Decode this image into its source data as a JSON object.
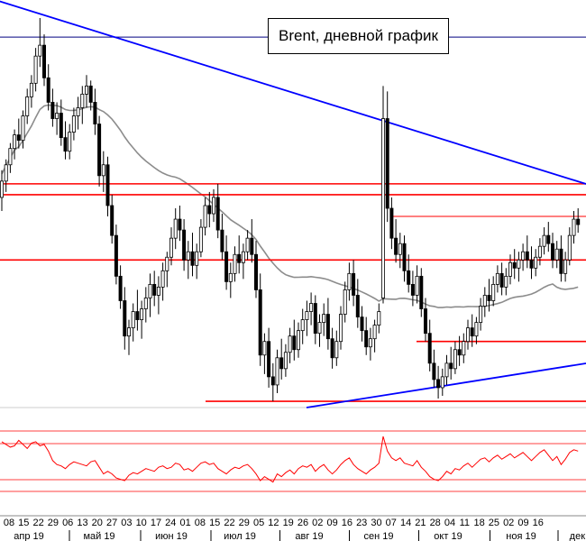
{
  "chart_data": [
    {
      "type": "candlestick",
      "title": "Brent, дневной график",
      "price_range_shown": [
        57.5,
        71.5
      ],
      "series": [
        {
          "name": "",
          "kind": "ohlc-daily",
          "values": [
            [
              64.9,
              65.9,
              64.4,
              65.5
            ],
            [
              65.5,
              66.3,
              65.1,
              66.1
            ],
            [
              66.1,
              66.9,
              65.8,
              66.7
            ],
            [
              66.7,
              67.4,
              66.3,
              67.2
            ],
            [
              67.2,
              67.8,
              66.7,
              67.0
            ],
            [
              67.0,
              68.1,
              66.7,
              67.9
            ],
            [
              67.9,
              68.9,
              67.6,
              68.6
            ],
            [
              68.6,
              69.4,
              68.2,
              69.1
            ],
            [
              69.1,
              70.4,
              68.8,
              70.1
            ],
            [
              70.1,
              71.5,
              69.7,
              70.5
            ],
            [
              70.5,
              70.9,
              69.0,
              69.3
            ],
            [
              69.3,
              69.8,
              68.1,
              68.4
            ],
            [
              68.4,
              68.9,
              67.5,
              67.8
            ],
            [
              67.8,
              68.4,
              67.2,
              68.0
            ],
            [
              68.0,
              68.5,
              66.8,
              67.1
            ],
            [
              67.1,
              67.7,
              66.3,
              66.6
            ],
            [
              66.6,
              67.6,
              66.3,
              67.3
            ],
            [
              67.3,
              68.2,
              67.0,
              67.9
            ],
            [
              67.9,
              68.6,
              67.4,
              68.2
            ],
            [
              68.2,
              69.0,
              67.6,
              68.7
            ],
            [
              68.7,
              69.4,
              68.2,
              69.0
            ],
            [
              69.0,
              69.2,
              68.1,
              68.4
            ],
            [
              68.4,
              68.9,
              67.2,
              67.6
            ],
            [
              67.6,
              67.9,
              65.3,
              65.7
            ],
            [
              65.7,
              66.6,
              65.1,
              66.1
            ],
            [
              66.1,
              66.4,
              64.2,
              64.6
            ],
            [
              64.6,
              65.0,
              63.2,
              63.5
            ],
            [
              63.5,
              63.9,
              61.7,
              62.0
            ],
            [
              62.0,
              62.4,
              60.8,
              61.1
            ],
            [
              61.1,
              61.6,
              59.3,
              59.8
            ],
            [
              59.8,
              60.4,
              59.1,
              60.1
            ],
            [
              60.1,
              61.0,
              59.6,
              60.7
            ],
            [
              60.7,
              61.5,
              60.0,
              60.4
            ],
            [
              60.4,
              61.1,
              59.7,
              60.8
            ],
            [
              60.8,
              61.6,
              60.3,
              61.2
            ],
            [
              61.2,
              62.1,
              60.5,
              61.7
            ],
            [
              61.7,
              62.2,
              60.9,
              61.3
            ],
            [
              61.3,
              62.0,
              60.6,
              61.6
            ],
            [
              61.6,
              62.5,
              61.1,
              62.2
            ],
            [
              62.2,
              62.9,
              61.6,
              62.7
            ],
            [
              62.7,
              63.8,
              62.4,
              63.4
            ],
            [
              63.4,
              64.5,
              63.0,
              64.1
            ],
            [
              64.1,
              64.6,
              63.3,
              63.7
            ],
            [
              63.7,
              64.1,
              62.2,
              62.6
            ],
            [
              62.6,
              63.3,
              61.9,
              62.9
            ],
            [
              62.9,
              63.6,
              62.0,
              62.4
            ],
            [
              62.4,
              63.2,
              61.9,
              62.9
            ],
            [
              62.9,
              64.1,
              62.7,
              63.8
            ],
            [
              63.8,
              64.9,
              63.5,
              64.6
            ],
            [
              64.6,
              65.1,
              63.8,
              64.3
            ],
            [
              64.3,
              65.2,
              64.0,
              64.9
            ],
            [
              64.9,
              65.4,
              63.4,
              63.7
            ],
            [
              63.7,
              64.3,
              62.6,
              62.9
            ],
            [
              62.9,
              63.5,
              61.5,
              61.8
            ],
            [
              61.8,
              62.5,
              61.2,
              62.1
            ],
            [
              62.1,
              63.1,
              61.8,
              62.8
            ],
            [
              62.8,
              63.5,
              62.1,
              62.5
            ],
            [
              62.5,
              63.2,
              61.9,
              62.9
            ],
            [
              62.9,
              63.7,
              62.6,
              63.4
            ],
            [
              63.4,
              64.1,
              62.5,
              62.8
            ],
            [
              62.8,
              63.3,
              61.2,
              61.5
            ],
            [
              61.5,
              62.1,
              58.7,
              59.1
            ],
            [
              59.1,
              59.9,
              58.4,
              59.6
            ],
            [
              59.6,
              60.1,
              57.9,
              58.3
            ],
            [
              58.3,
              58.8,
              57.4,
              58.0
            ],
            [
              58.0,
              59.3,
              57.7,
              59.0
            ],
            [
              59.0,
              59.7,
              58.2,
              58.6
            ],
            [
              58.6,
              59.5,
              58.3,
              59.2
            ],
            [
              59.2,
              60.1,
              58.8,
              59.8
            ],
            [
              59.8,
              60.4,
              58.9,
              59.3
            ],
            [
              59.3,
              60.3,
              59.0,
              60.0
            ],
            [
              60.0,
              60.8,
              59.5,
              60.4
            ],
            [
              60.4,
              61.1,
              59.8,
              60.7
            ],
            [
              60.7,
              61.4,
              60.2,
              61.0
            ],
            [
              61.0,
              61.3,
              59.5,
              59.9
            ],
            [
              59.9,
              60.6,
              59.4,
              60.3
            ],
            [
              60.3,
              61.0,
              59.8,
              60.6
            ],
            [
              60.6,
              61.2,
              59.3,
              59.7
            ],
            [
              59.7,
              60.1,
              58.6,
              59.0
            ],
            [
              59.0,
              60.0,
              58.7,
              59.6
            ],
            [
              59.6,
              60.9,
              59.3,
              60.6
            ],
            [
              60.6,
              61.8,
              60.3,
              61.5
            ],
            [
              61.5,
              62.5,
              61.1,
              62.1
            ],
            [
              62.1,
              62.6,
              60.9,
              61.3
            ],
            [
              61.3,
              61.9,
              60.1,
              60.5
            ],
            [
              60.5,
              60.9,
              59.6,
              60.0
            ],
            [
              60.0,
              60.5,
              59.1,
              59.4
            ],
            [
              59.4,
              60.1,
              58.9,
              59.7
            ],
            [
              59.7,
              60.4,
              59.2,
              60.2
            ],
            [
              60.2,
              61.0,
              59.9,
              60.7
            ],
            [
              61.2,
              69.0,
              61.0,
              67.8
            ],
            [
              67.8,
              68.8,
              64.0,
              64.5
            ],
            [
              64.5,
              64.9,
              63.0,
              63.4
            ],
            [
              63.4,
              64.1,
              62.5,
              62.8
            ],
            [
              62.8,
              63.6,
              62.3,
              63.2
            ],
            [
              63.2,
              63.5,
              61.8,
              62.2
            ],
            [
              62.2,
              62.8,
              61.4,
              61.7
            ],
            [
              61.7,
              62.2,
              60.9,
              61.3
            ],
            [
              61.3,
              62.4,
              61.0,
              62.0
            ],
            [
              62.0,
              62.3,
              60.5,
              60.8
            ],
            [
              60.8,
              61.2,
              59.6,
              59.9
            ],
            [
              59.9,
              60.4,
              58.5,
              58.8
            ],
            [
              58.8,
              59.3,
              57.9,
              58.2
            ],
            [
              58.2,
              58.7,
              57.5,
              57.9
            ],
            [
              57.9,
              58.6,
              57.6,
              58.3
            ],
            [
              58.3,
              59.1,
              58.0,
              58.8
            ],
            [
              58.8,
              59.4,
              58.2,
              58.6
            ],
            [
              58.6,
              59.6,
              58.4,
              59.3
            ],
            [
              59.3,
              59.8,
              58.7,
              59.1
            ],
            [
              59.1,
              59.9,
              58.8,
              59.6
            ],
            [
              59.6,
              60.4,
              59.3,
              60.1
            ],
            [
              60.1,
              60.6,
              59.4,
              59.8
            ],
            [
              59.8,
              60.5,
              59.5,
              60.3
            ],
            [
              60.3,
              61.2,
              60.0,
              60.9
            ],
            [
              60.9,
              61.6,
              60.5,
              61.3
            ],
            [
              61.3,
              61.9,
              60.7,
              61.1
            ],
            [
              61.1,
              62.0,
              60.9,
              61.7
            ],
            [
              61.7,
              62.4,
              61.4,
              62.1
            ],
            [
              62.1,
              62.5,
              61.3,
              61.6
            ],
            [
              61.6,
              62.3,
              61.3,
              62.0
            ],
            [
              62.0,
              62.8,
              61.7,
              62.5
            ],
            [
              62.5,
              63.0,
              61.9,
              62.3
            ],
            [
              62.3,
              62.9,
              61.8,
              62.6
            ],
            [
              62.6,
              63.2,
              62.2,
              62.9
            ],
            [
              62.9,
              63.5,
              62.3,
              62.6
            ],
            [
              62.6,
              63.1,
              61.9,
              62.3
            ],
            [
              62.3,
              63.0,
              62.0,
              62.7
            ],
            [
              62.7,
              63.4,
              62.4,
              63.1
            ],
            [
              63.1,
              63.8,
              62.8,
              63.5
            ],
            [
              63.5,
              64.0,
              62.9,
              63.2
            ],
            [
              63.2,
              63.6,
              62.3,
              62.6
            ],
            [
              62.6,
              63.3,
              62.3,
              63.0
            ],
            [
              63.0,
              63.5,
              61.8,
              62.1
            ],
            [
              62.1,
              62.9,
              61.8,
              62.6
            ],
            [
              62.6,
              63.8,
              62.4,
              63.5
            ],
            [
              63.5,
              64.4,
              63.2,
              64.1
            ],
            [
              64.1,
              64.5,
              63.6,
              63.9
            ]
          ]
        },
        {
          "name": "",
          "kind": "moving-average",
          "values": []
        }
      ],
      "levels": [
        {
          "kind": "horizontal",
          "color": "#ff0000",
          "price": 65.4
        },
        {
          "kind": "horizontal",
          "color": "#ff0000",
          "price": 65.0
        },
        {
          "kind": "horizontal",
          "color": "#ff0000",
          "price": 62.6
        },
        {
          "kind": "horizontal",
          "color": "#ff0000",
          "price": 64.2,
          "thin": true
        },
        {
          "kind": "horizontal",
          "color": "#ff0000",
          "price": 59.6
        },
        {
          "kind": "horizontal",
          "color": "#ff0000",
          "price": 57.4
        },
        {
          "kind": "horizontal",
          "color": "#000080",
          "price": 70.8,
          "thin": true
        },
        {
          "kind": "trendline",
          "color": "#0000ff",
          "label": "descending resistance"
        },
        {
          "kind": "trendline",
          "color": "#0000ff",
          "label": "ascending support"
        }
      ],
      "indicator": {
        "type": "line",
        "color": "#ff0000",
        "band_levels": 4,
        "values": [
          62,
          60,
          58,
          59,
          63,
          60,
          57,
          61,
          62,
          59,
          60,
          55,
          48,
          45,
          44,
          42,
          45,
          47,
          46,
          45,
          44,
          47,
          48,
          43,
          38,
          40,
          38,
          35,
          34,
          33,
          37,
          39,
          38,
          40,
          42,
          41,
          40,
          43,
          44,
          42,
          43,
          46,
          45,
          41,
          42,
          40,
          43,
          46,
          47,
          45,
          46,
          42,
          40,
          38,
          41,
          43,
          42,
          44,
          45,
          42,
          38,
          33,
          36,
          34,
          32,
          38,
          36,
          39,
          41,
          38,
          42,
          44,
          43,
          45,
          40,
          43,
          45,
          41,
          38,
          41,
          45,
          48,
          50,
          45,
          42,
          40,
          38,
          41,
          43,
          46,
          66,
          55,
          50,
          48,
          50,
          46,
          45,
          44,
          48,
          43,
          40,
          36,
          34,
          33,
          36,
          40,
          38,
          42,
          41,
          44,
          46,
          43,
          46,
          49,
          50,
          47,
          50,
          52,
          49,
          51,
          53,
          50,
          52,
          54,
          51,
          48,
          51,
          54,
          56,
          52,
          48,
          51,
          45,
          49,
          54,
          56,
          55
        ]
      },
      "x_axis": {
        "day_ticks": [
          "08",
          "15",
          "22",
          "29",
          "06",
          "13",
          "20",
          "27",
          "03",
          "10",
          "17",
          "24",
          "01",
          "08",
          "15",
          "22",
          "29",
          "05",
          "12",
          "19",
          "26",
          "02",
          "09",
          "16",
          "23",
          "30",
          "07",
          "14",
          "21",
          "28",
          "04",
          "11",
          "18",
          "25",
          "02",
          "09",
          "16"
        ],
        "months": [
          "апр 19",
          "май 19",
          "июн 19",
          "июл 19",
          "авг 19",
          "сен 19",
          "окт 19",
          "ноя 19",
          "дек 19"
        ]
      },
      "grid": false,
      "legend": "none"
    }
  ]
}
